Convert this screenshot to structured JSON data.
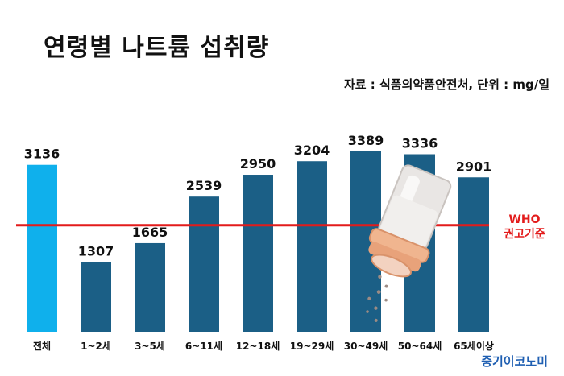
{
  "header": {
    "title": "연령별 나트륨 섭취량",
    "source": "자료 : 식품의약품안전처, 단위 : mg/일"
  },
  "branding": {
    "watermark": "중기이코노미"
  },
  "colors": {
    "bar_total": "#0fb0ec",
    "bar_group": "#1b5f86",
    "reference_line": "#e31b1b",
    "watermark": "#1f5fb2"
  },
  "chart_data": {
    "type": "bar",
    "title": "연령별 나트륨 섭취량",
    "categories": [
      "전체",
      "1~2세",
      "3~5세",
      "6~11세",
      "12~18세",
      "19~29세",
      "30~49세",
      "50~64세",
      "65세이상"
    ],
    "values": [
      3136,
      1307,
      1665,
      2539,
      2950,
      3204,
      3389,
      3336,
      2901
    ],
    "unit": "mg/일",
    "ylim": [
      0,
      3389
    ],
    "grid": false,
    "reference_line": {
      "label_line1": "WHO",
      "label_line2": "권고기준",
      "value": 2000
    }
  }
}
